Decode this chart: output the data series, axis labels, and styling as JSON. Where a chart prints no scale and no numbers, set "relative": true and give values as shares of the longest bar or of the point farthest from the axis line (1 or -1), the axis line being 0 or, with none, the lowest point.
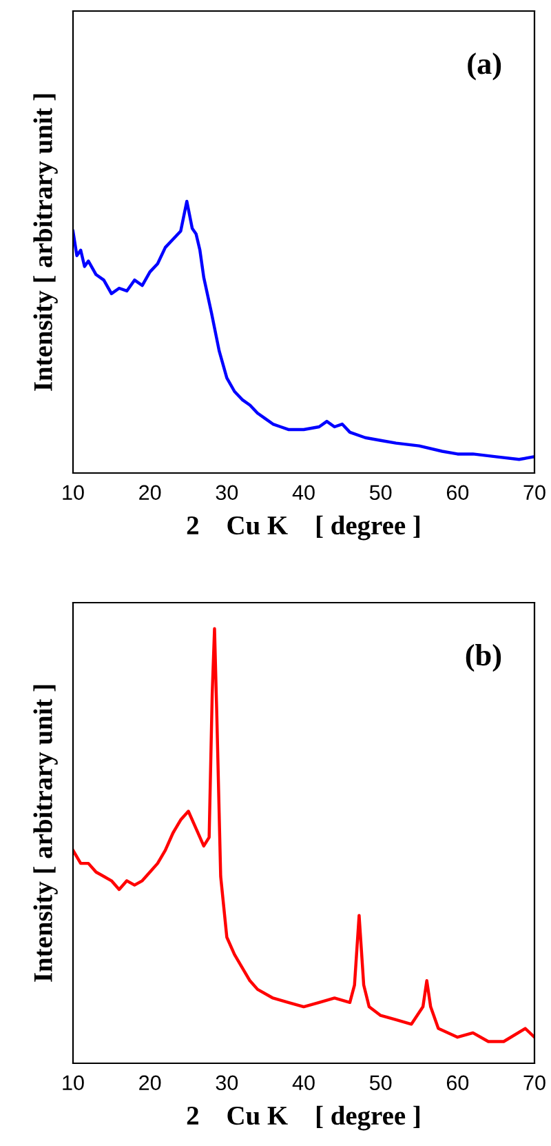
{
  "chart_data": [
    {
      "type": "line",
      "relative": true,
      "xlabel": "2    Cu K    [ degree ]",
      "ylabel": "Intensity [ arbitrary unit ]",
      "annotations": [
        "(a)"
      ],
      "xlim": [
        10,
        70
      ],
      "xticks": [
        10,
        20,
        30,
        40,
        50,
        60,
        70
      ],
      "tick_labels": "x",
      "grid": false,
      "series": [
        {
          "color": "#0000ff",
          "x": [
            10,
            10.5,
            11,
            11.5,
            12,
            13,
            14,
            15,
            16,
            17,
            18,
            19,
            20,
            21,
            22,
            23,
            24,
            24.8,
            25.5,
            26,
            26.5,
            27,
            28,
            29,
            30,
            31,
            32,
            33,
            34,
            35,
            36,
            37,
            38,
            40,
            42,
            43,
            44,
            45,
            46,
            48,
            50,
            52,
            55,
            58,
            60,
            62,
            65,
            68,
            70
          ],
          "values": [
            0.89,
            0.8,
            0.82,
            0.76,
            0.78,
            0.73,
            0.71,
            0.66,
            0.68,
            0.67,
            0.71,
            0.69,
            0.74,
            0.77,
            0.83,
            0.86,
            0.89,
            1.0,
            0.9,
            0.88,
            0.82,
            0.72,
            0.59,
            0.45,
            0.35,
            0.3,
            0.27,
            0.25,
            0.22,
            0.2,
            0.18,
            0.17,
            0.16,
            0.16,
            0.17,
            0.19,
            0.17,
            0.18,
            0.15,
            0.13,
            0.12,
            0.11,
            0.1,
            0.08,
            0.07,
            0.07,
            0.06,
            0.05,
            0.06
          ]
        }
      ]
    },
    {
      "type": "line",
      "relative": true,
      "xlabel": "2    Cu K    [ degree ]",
      "ylabel": "Intensity [ arbitrary unit ]",
      "annotations": [
        "(b)"
      ],
      "xlim": [
        10,
        70
      ],
      "xticks": [
        10,
        20,
        30,
        40,
        50,
        60,
        70
      ],
      "tick_labels": "x",
      "grid": false,
      "series": [
        {
          "color": "#ff0000",
          "x": [
            10,
            11,
            12,
            13,
            14,
            15,
            16,
            17,
            18,
            19,
            20,
            21,
            22,
            23,
            24,
            25,
            26,
            27,
            27.7,
            28.1,
            28.4,
            28.7,
            29.2,
            30,
            31,
            32,
            33,
            34,
            36,
            38,
            40,
            42,
            44,
            46,
            46.6,
            47.2,
            47.8,
            48.5,
            50,
            52,
            54,
            55.5,
            56,
            56.5,
            57.5,
            60,
            62,
            64,
            66,
            68.8,
            70
          ],
          "values": [
            0.49,
            0.46,
            0.46,
            0.44,
            0.43,
            0.42,
            0.4,
            0.42,
            0.41,
            0.42,
            0.44,
            0.46,
            0.49,
            0.53,
            0.56,
            0.58,
            0.54,
            0.5,
            0.52,
            0.85,
            1.0,
            0.8,
            0.43,
            0.29,
            0.25,
            0.22,
            0.19,
            0.17,
            0.15,
            0.14,
            0.13,
            0.14,
            0.15,
            0.14,
            0.18,
            0.34,
            0.18,
            0.13,
            0.11,
            0.1,
            0.09,
            0.13,
            0.19,
            0.13,
            0.08,
            0.06,
            0.07,
            0.05,
            0.05,
            0.08,
            0.06
          ]
        }
      ]
    }
  ]
}
